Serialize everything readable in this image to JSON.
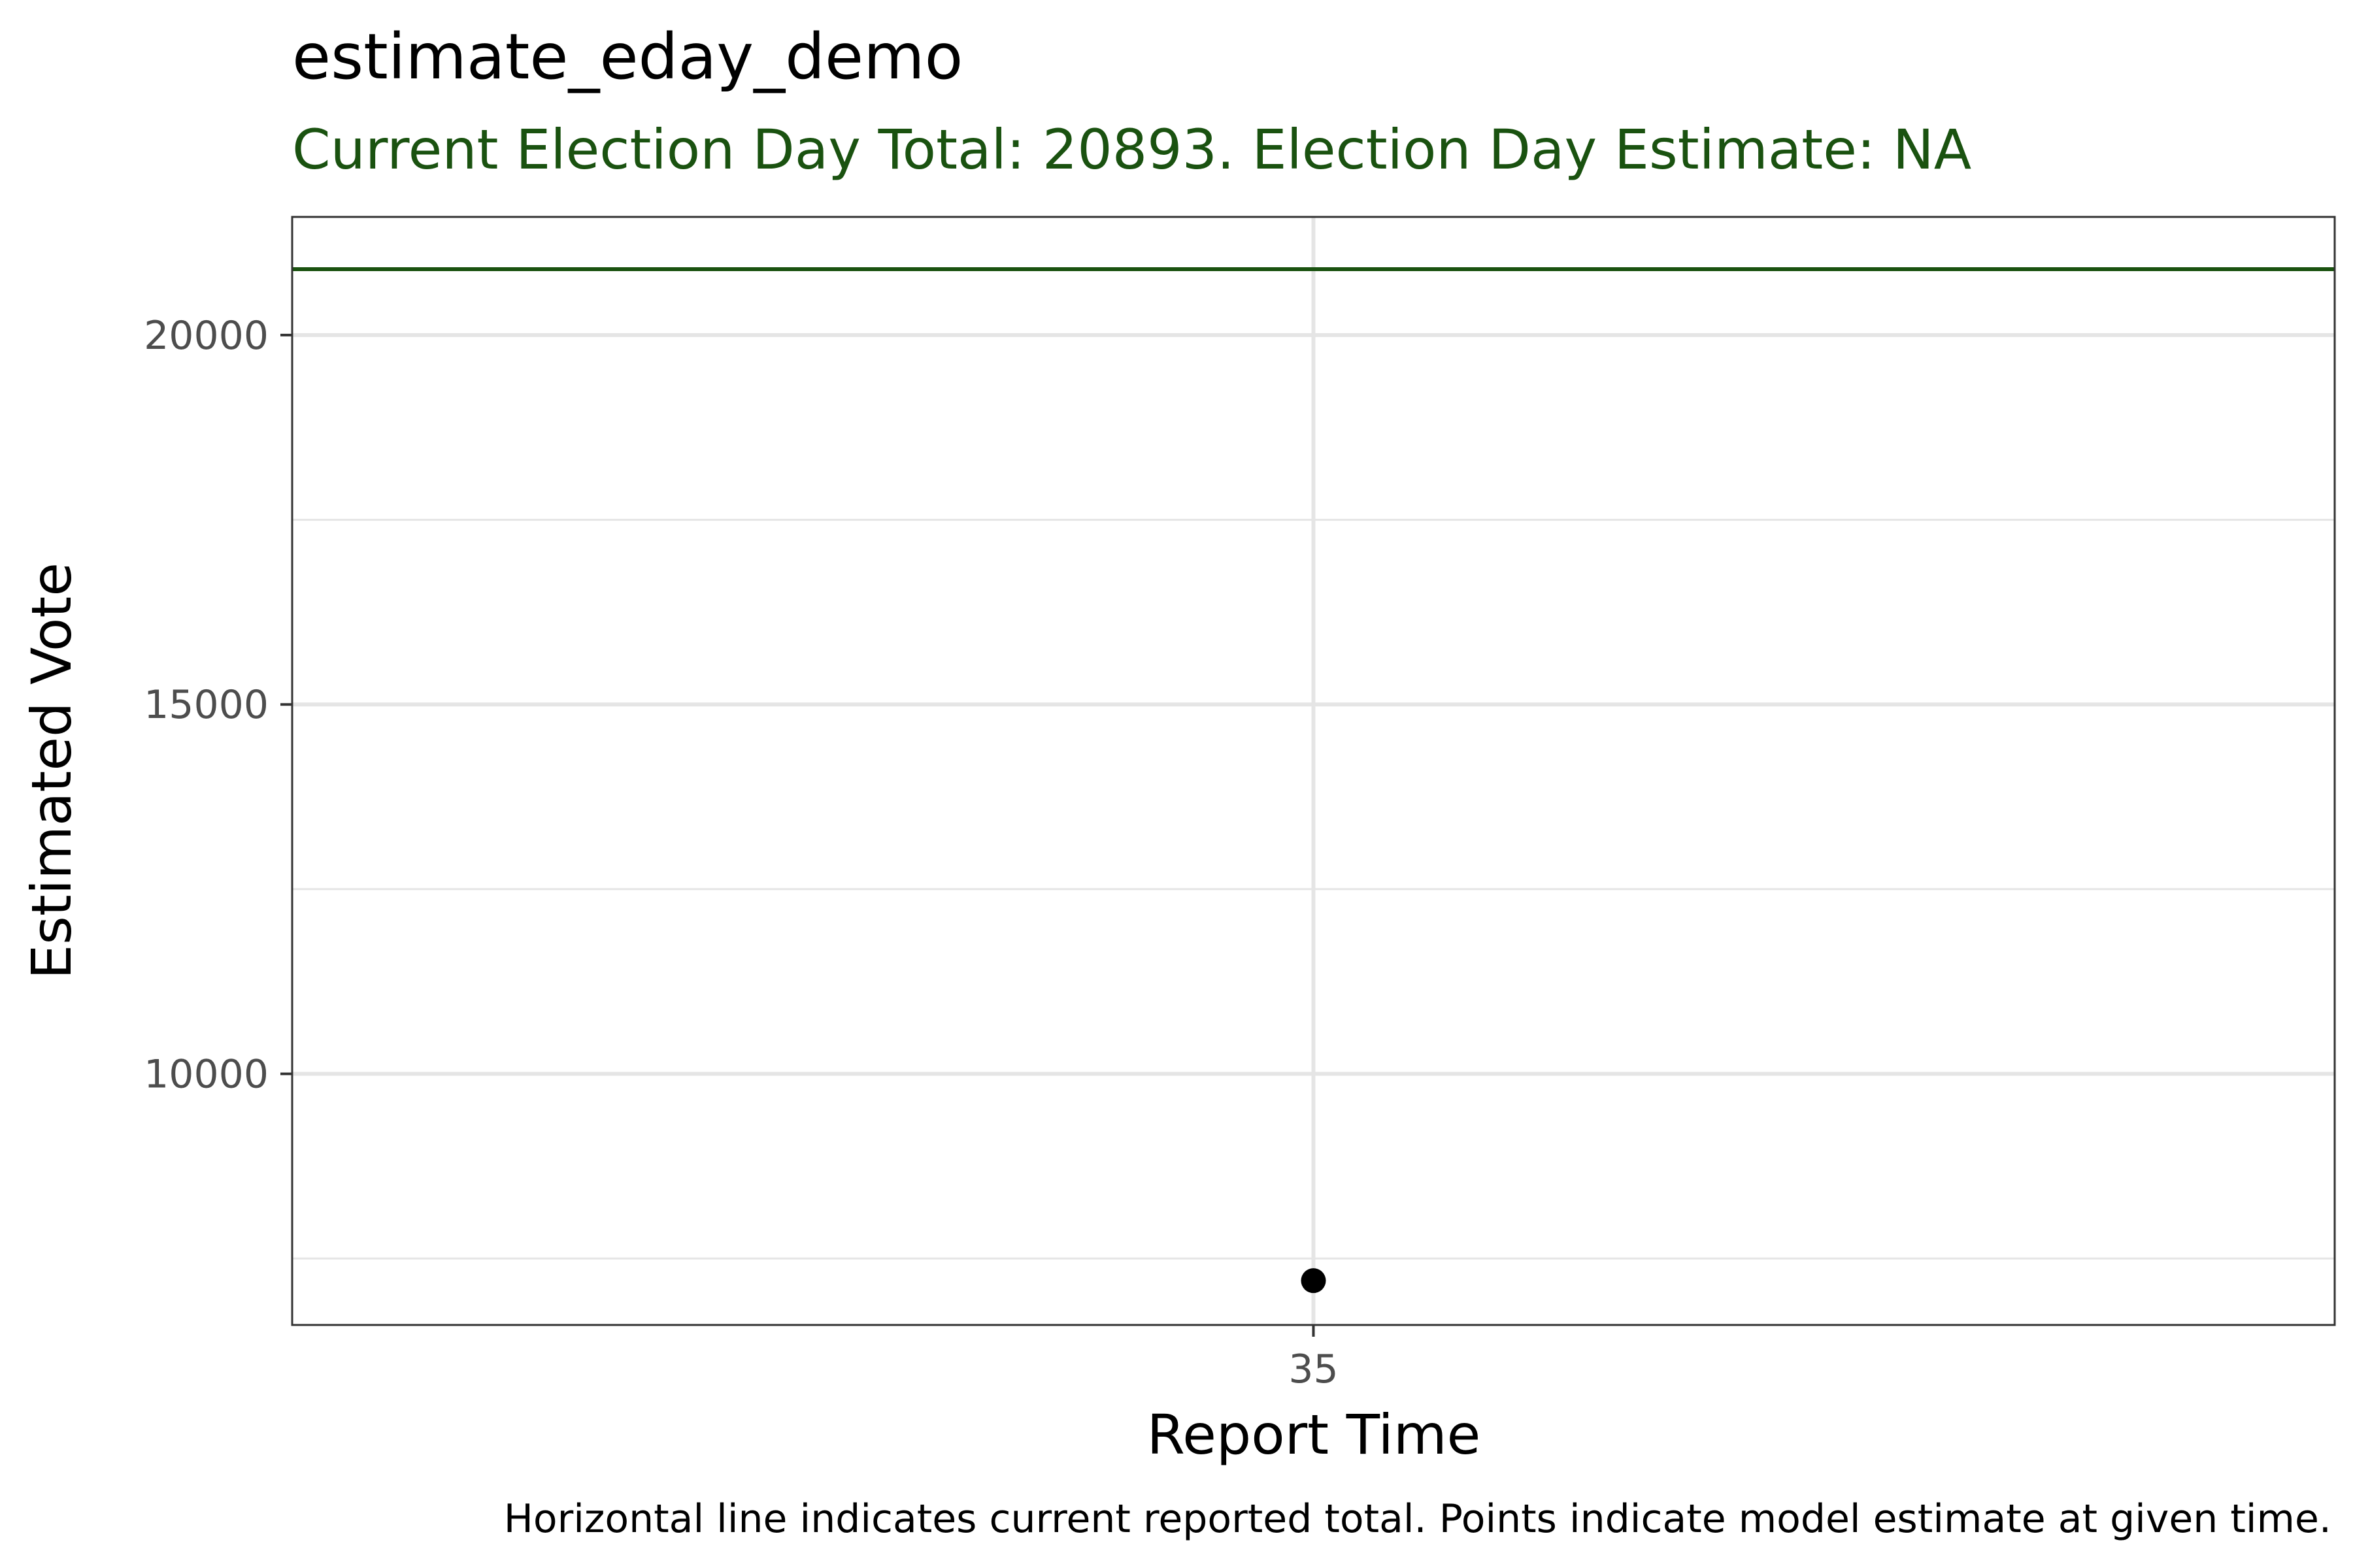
{
  "chart_data": {
    "type": "scatter",
    "title": "estimate_eday_demo",
    "subtitle": "Current Election Day Total: 20893. Election Day Estimate: NA",
    "xlabel": "Report Time",
    "ylabel": "Estimated Vote",
    "caption": "Horizontal line indicates current reported total. Points indicate model estimate at given time.",
    "x_ticks": [
      "35"
    ],
    "y_ticks": [
      10000,
      15000,
      20000
    ],
    "y_tick_labels": [
      "10000",
      "15000",
      "20000"
    ],
    "ylim": [
      6600,
      21600
    ],
    "points": [
      {
        "x": "35",
        "y": 7200
      }
    ],
    "reference_line": {
      "y": 20893
    },
    "grid": true,
    "colors": {
      "accent": "#1a5210",
      "point": "#000000",
      "grid": "#e5e5e5"
    }
  }
}
